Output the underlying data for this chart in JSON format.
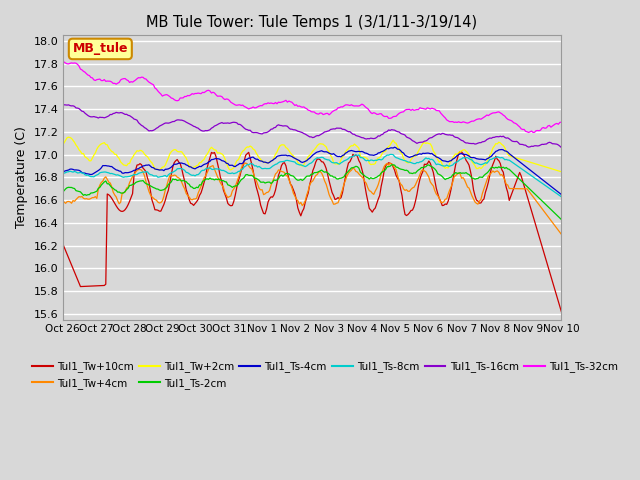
{
  "title": "MB Tule Tower: Tule Temps 1 (3/1/11-3/19/14)",
  "ylabel": "Temperature (C)",
  "xlim_labels": [
    "Oct 26",
    "Oct 27",
    "Oct 28",
    "Oct 29",
    "Oct 30",
    "Oct 31",
    "Nov 1",
    "Nov 2",
    "Nov 3",
    "Nov 4",
    "Nov 5",
    "Nov 6",
    "Nov 7",
    "Nov 8",
    "Nov 9",
    "Nov 10"
  ],
  "ylim": [
    15.55,
    18.05
  ],
  "yticks": [
    15.6,
    15.8,
    16.0,
    16.2,
    16.4,
    16.6,
    16.8,
    17.0,
    17.2,
    17.4,
    17.6,
    17.8,
    18.0
  ],
  "background_color": "#d8d8d8",
  "plot_bg_color": "#d8d8d8",
  "series": [
    {
      "label": "Tul1_Tw+10cm",
      "color": "#cc0000"
    },
    {
      "label": "Tul1_Tw+4cm",
      "color": "#ff8800"
    },
    {
      "label": "Tul1_Tw+2cm",
      "color": "#ffff00"
    },
    {
      "label": "Tul1_Ts-2cm",
      "color": "#00cc00"
    },
    {
      "label": "Tul1_Ts-4cm",
      "color": "#0000cc"
    },
    {
      "label": "Tul1_Ts-8cm",
      "color": "#00cccc"
    },
    {
      "label": "Tul1_Ts-16cm",
      "color": "#8800cc"
    },
    {
      "label": "Tul1_Ts-32cm",
      "color": "#ff00ff"
    }
  ],
  "legend_box_label": "MB_tule",
  "legend_box_color": "#ffff99",
  "legend_box_border": "#cc8800",
  "n_points": 336
}
